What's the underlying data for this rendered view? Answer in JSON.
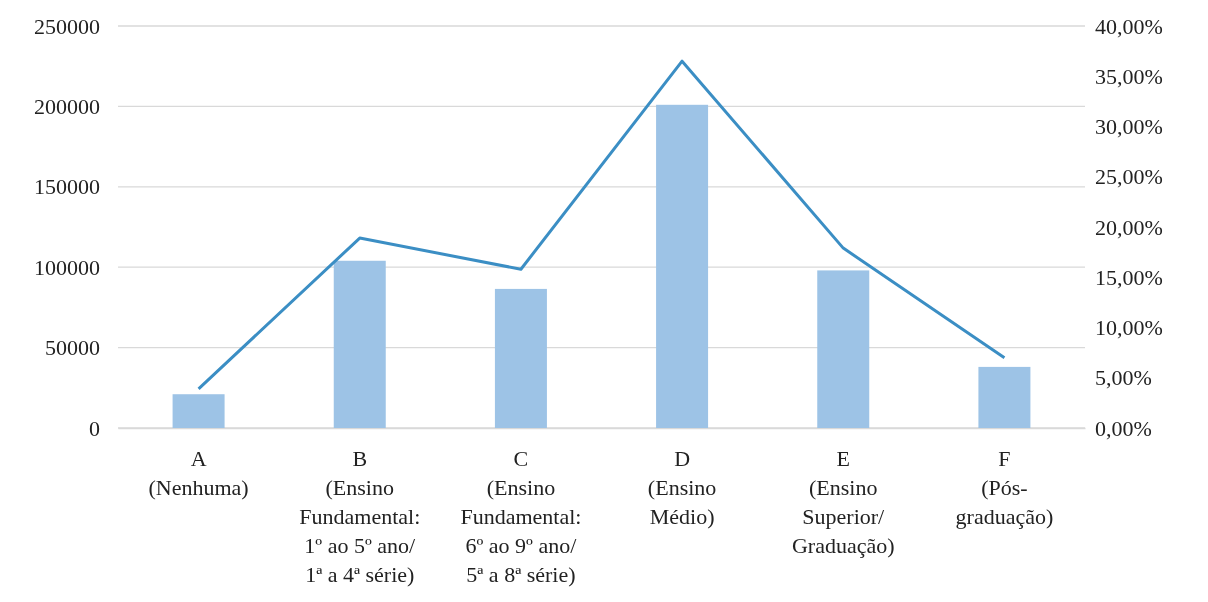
{
  "chart_data": {
    "type": "bar",
    "categories": [
      "A\n(Nenhuma)",
      "B\n(Ensino\nFundamental:\n1º ao 5º ano/\n1ª a 4ª série)",
      "C\n(Ensino\nFundamental:\n6º ao 9º ano/\n5ª a 8ª série)",
      "D\n(Ensino\nMédio)",
      "E\n(Ensino\nSuperior/\nGraduação)",
      "F\n(Pós-\ngraduação)"
    ],
    "series": [
      {
        "color": "#9dc3e6",
        "values": [
          21000,
          104000,
          86500,
          201000,
          98000,
          38000
        ]
      },
      {
        "type": "line",
        "axis": "y2",
        "color": "#3b8ec4",
        "values": [
          3.9,
          18.9,
          15.8,
          36.5,
          17.9,
          7.0
        ]
      }
    ],
    "ylim": [
      0,
      250000
    ],
    "yticks": [
      0,
      50000,
      100000,
      150000,
      200000,
      250000
    ],
    "y2lim": [
      0,
      40
    ],
    "y2ticks": [
      {
        "value": 0,
        "label": "0,00%"
      },
      {
        "value": 5,
        "label": "5,00%"
      },
      {
        "value": 10,
        "label": "10,00%"
      },
      {
        "value": 15,
        "label": "15,00%"
      },
      {
        "value": 20,
        "label": "20,00%"
      },
      {
        "value": 25,
        "label": "25,00%"
      },
      {
        "value": 30,
        "label": "30,00%"
      },
      {
        "value": 35,
        "label": "35,00%"
      },
      {
        "value": 40,
        "label": "40,00%"
      }
    ],
    "grid": "y",
    "marker": "none",
    "line_style": "solid"
  }
}
